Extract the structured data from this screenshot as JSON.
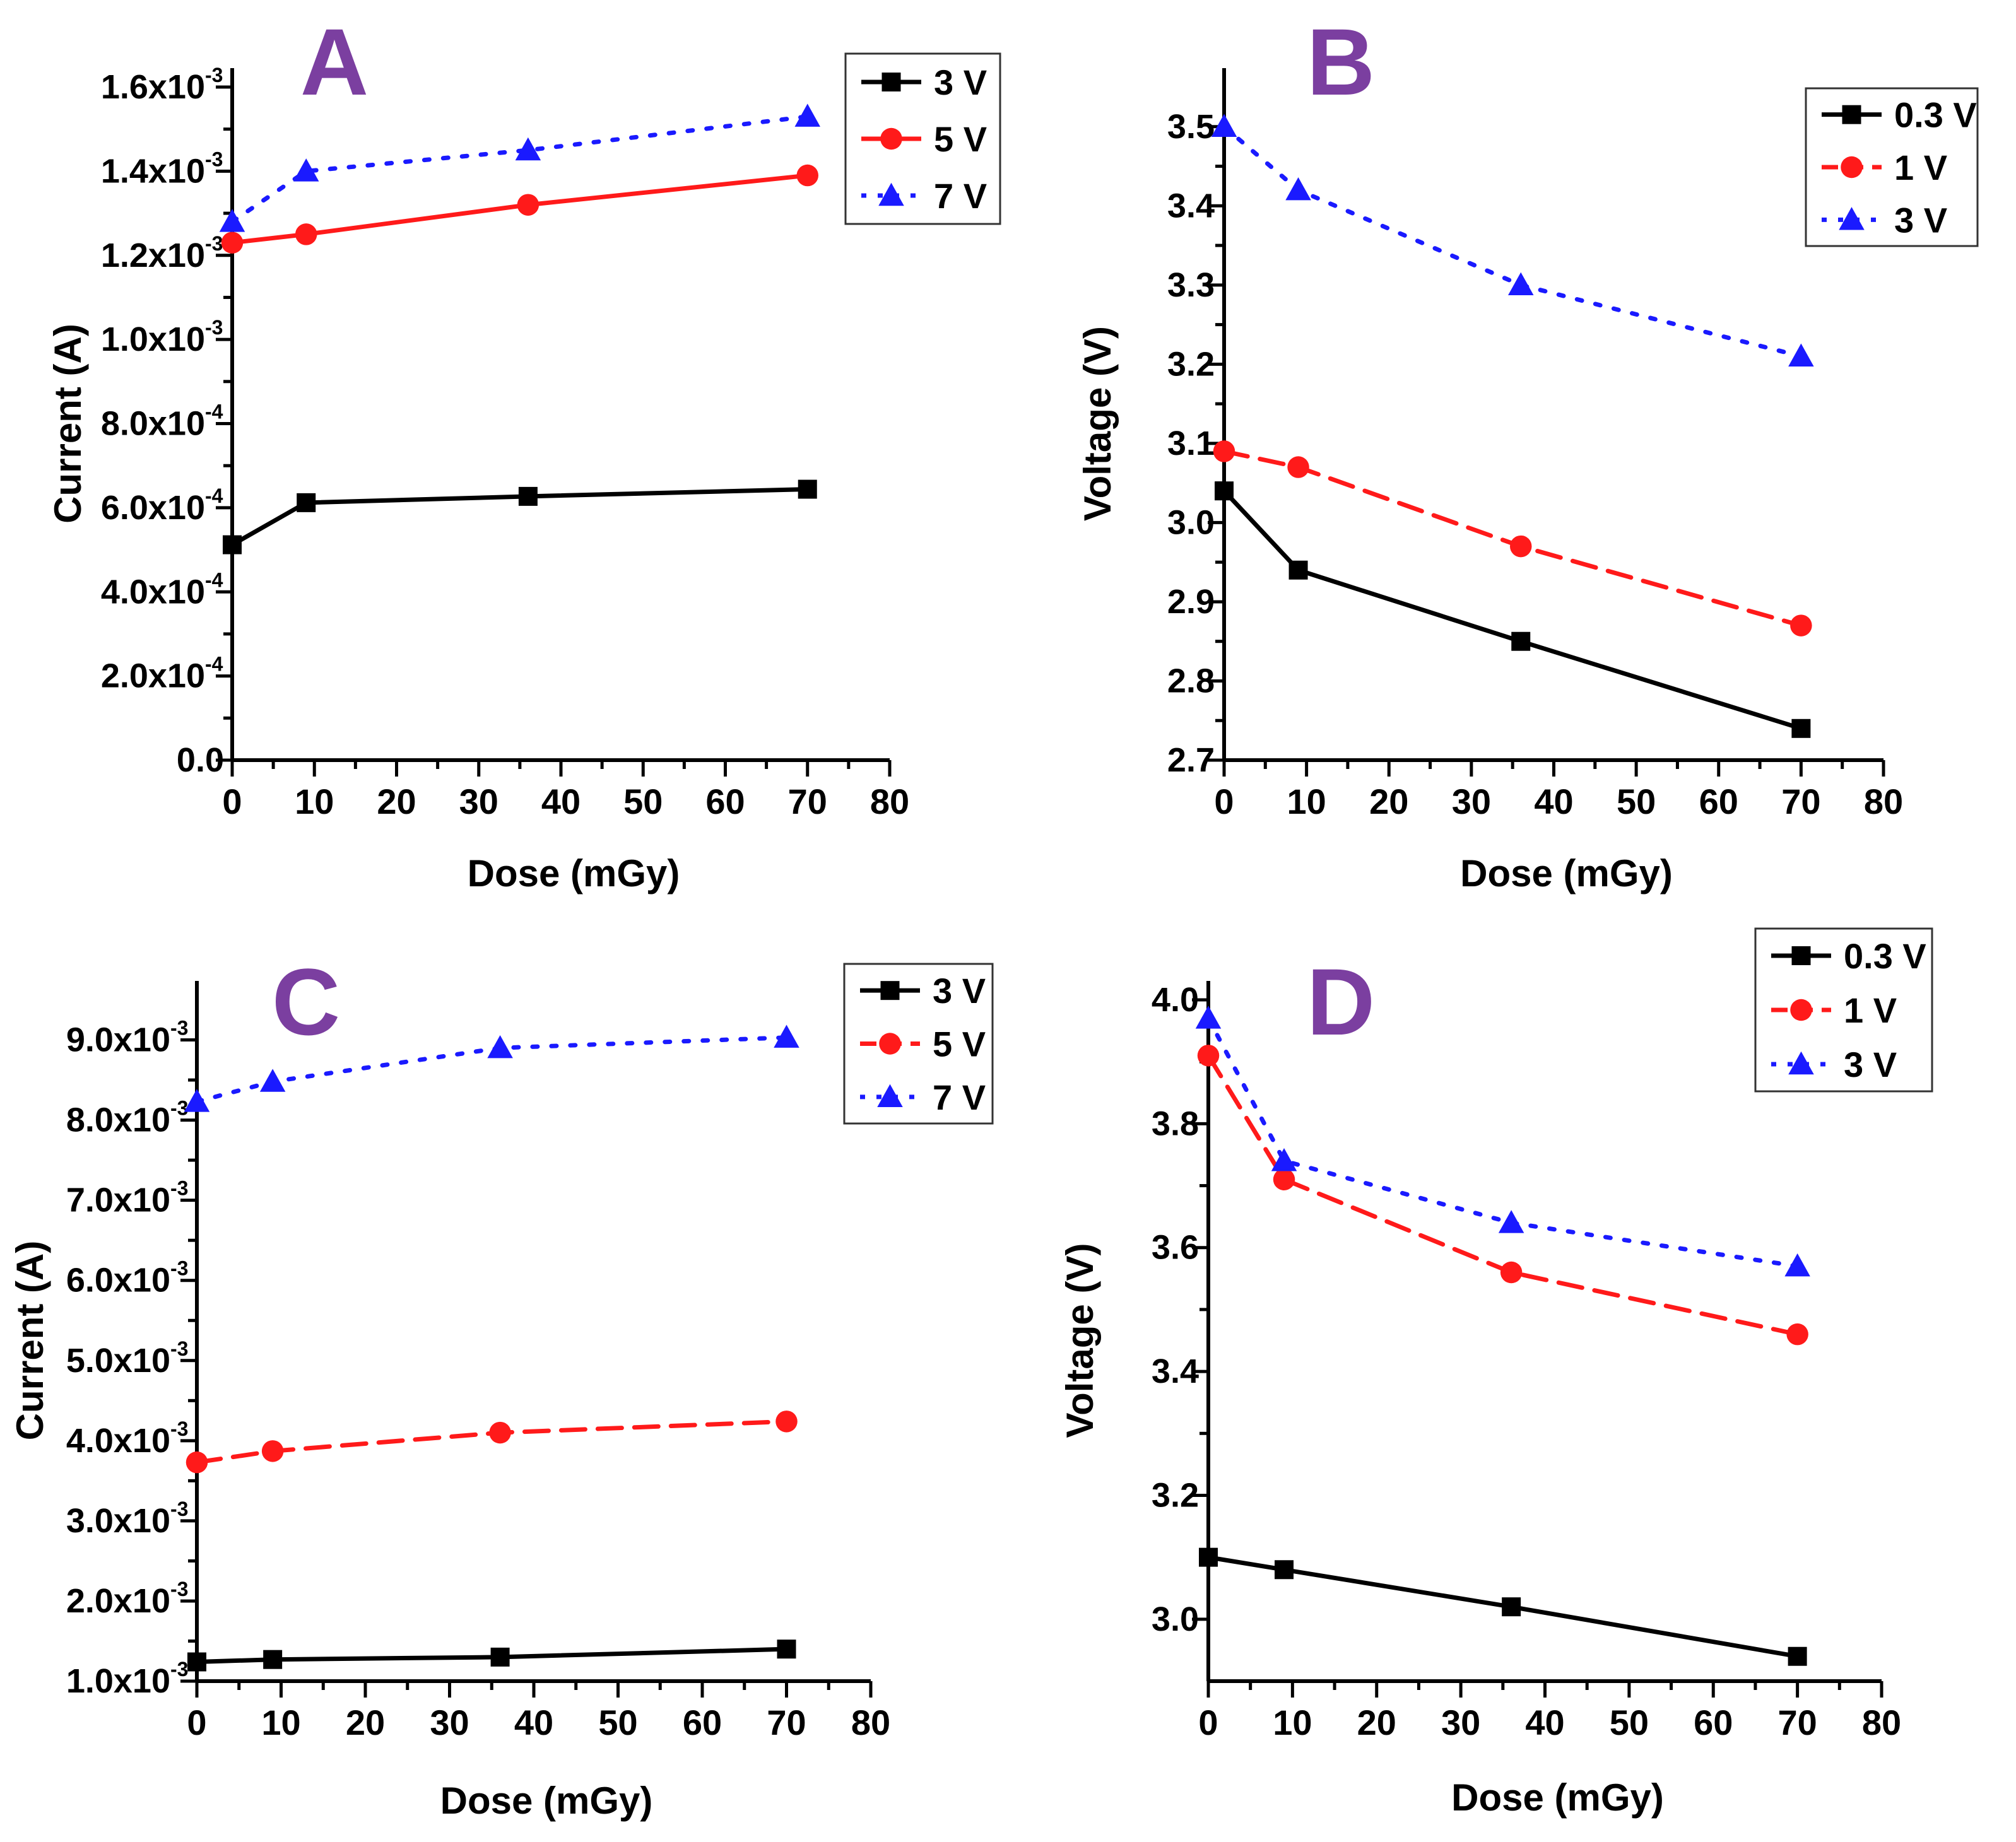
{
  "figure": {
    "colors": {
      "black": "#000000",
      "red": "#ff1a1a",
      "blue": "#1a1aff",
      "panel_letter": "#7b3fa0"
    }
  },
  "chart_data": [
    {
      "id": "A",
      "panel_label": "A",
      "type": "line",
      "xlabel": "Dose (mGy)",
      "ylabel": "Current (A)",
      "xlim": [
        0,
        80
      ],
      "ylim": [
        0,
        0.0016
      ],
      "x_ticks": [
        "0",
        "10",
        "20",
        "30",
        "40",
        "50",
        "60",
        "70",
        "80"
      ],
      "y_ticks": [
        {
          "value": 0,
          "mant": "0.0",
          "exp": ""
        },
        {
          "value": 0.0002,
          "mant": "2.0x10",
          "exp": "-4"
        },
        {
          "value": 0.0004,
          "mant": "4.0x10",
          "exp": "-4"
        },
        {
          "value": 0.0006,
          "mant": "6.0x10",
          "exp": "-4"
        },
        {
          "value": 0.0008,
          "mant": "8.0x10",
          "exp": "-4"
        },
        {
          "value": 0.001,
          "mant": "1.0x10",
          "exp": "-3"
        },
        {
          "value": 0.0012,
          "mant": "1.2x10",
          "exp": "-3"
        },
        {
          "value": 0.0014,
          "mant": "1.4x10",
          "exp": "-3"
        },
        {
          "value": 0.0016,
          "mant": "1.6x10",
          "exp": "-3"
        }
      ],
      "x": [
        0,
        9,
        36,
        70
      ],
      "series": [
        {
          "name": "3 V",
          "color": "#000000",
          "marker": "square",
          "dash": "solid",
          "values": [
            0.000512,
            0.000612,
            0.000627,
            0.000644
          ]
        },
        {
          "name": "5 V",
          "color": "#ff1a1a",
          "marker": "circle",
          "dash": "solid",
          "values": [
            0.00123,
            0.00125,
            0.00132,
            0.00139
          ]
        },
        {
          "name": "7 V",
          "color": "#1a1aff",
          "marker": "triangle",
          "dash": "dotted",
          "values": [
            0.00128,
            0.0014,
            0.00145,
            0.00153
          ]
        }
      ],
      "legend": "top-right"
    },
    {
      "id": "B",
      "panel_label": "B",
      "type": "line",
      "xlabel": "Dose (mGy)",
      "ylabel": "Voltage (V)",
      "xlim": [
        0,
        80
      ],
      "ylim": [
        2.7,
        3.55
      ],
      "x_ticks": [
        "0",
        "10",
        "20",
        "30",
        "40",
        "50",
        "60",
        "70",
        "80"
      ],
      "y_ticks": [
        {
          "value": 2.7,
          "mant": "2.7",
          "exp": ""
        },
        {
          "value": 2.8,
          "mant": "2.8",
          "exp": ""
        },
        {
          "value": 2.9,
          "mant": "2.9",
          "exp": ""
        },
        {
          "value": 3.0,
          "mant": "3.0",
          "exp": ""
        },
        {
          "value": 3.1,
          "mant": "3.1",
          "exp": ""
        },
        {
          "value": 3.2,
          "mant": "3.2",
          "exp": ""
        },
        {
          "value": 3.3,
          "mant": "3.3",
          "exp": ""
        },
        {
          "value": 3.4,
          "mant": "3.4",
          "exp": ""
        },
        {
          "value": 3.5,
          "mant": "3.5",
          "exp": ""
        }
      ],
      "x": [
        0,
        9,
        36,
        70
      ],
      "series": [
        {
          "name": "0.3 V",
          "color": "#000000",
          "marker": "square",
          "dash": "solid",
          "values": [
            3.04,
            2.94,
            2.85,
            2.74
          ]
        },
        {
          "name": "1 V",
          "color": "#ff1a1a",
          "marker": "circle",
          "dash": "dashed",
          "values": [
            3.09,
            3.07,
            2.97,
            2.87
          ]
        },
        {
          "name": "3 V",
          "color": "#1a1aff",
          "marker": "triangle",
          "dash": "dotted",
          "values": [
            3.5,
            3.42,
            3.3,
            3.21
          ]
        }
      ],
      "legend": "top-right"
    },
    {
      "id": "C",
      "panel_label": "C",
      "type": "line",
      "xlabel": "Dose (mGy)",
      "ylabel": "Current (A)",
      "xlim": [
        0,
        80
      ],
      "ylim": [
        0.001,
        0.0095
      ],
      "x_ticks": [
        "0",
        "10",
        "20",
        "30",
        "40",
        "50",
        "60",
        "70",
        "80"
      ],
      "y_ticks": [
        {
          "value": 0.001,
          "mant": "1.0x10",
          "exp": "-3"
        },
        {
          "value": 0.002,
          "mant": "2.0x10",
          "exp": "-3"
        },
        {
          "value": 0.003,
          "mant": "3.0x10",
          "exp": "-3"
        },
        {
          "value": 0.004,
          "mant": "4.0x10",
          "exp": "-3"
        },
        {
          "value": 0.005,
          "mant": "5.0x10",
          "exp": "-3"
        },
        {
          "value": 0.006,
          "mant": "6.0x10",
          "exp": "-3"
        },
        {
          "value": 0.007,
          "mant": "7.0x10",
          "exp": "-3"
        },
        {
          "value": 0.008,
          "mant": "8.0x10",
          "exp": "-3"
        },
        {
          "value": 0.009,
          "mant": "9.0x10",
          "exp": "-3"
        }
      ],
      "x": [
        0,
        9,
        36,
        70
      ],
      "series": [
        {
          "name": "3 V",
          "color": "#000000",
          "marker": "square",
          "dash": "solid",
          "values": [
            0.00124,
            0.00127,
            0.0013,
            0.0014
          ]
        },
        {
          "name": "5 V",
          "color": "#ff1a1a",
          "marker": "circle",
          "dash": "dashed",
          "values": [
            0.00373,
            0.00387,
            0.0041,
            0.00424
          ]
        },
        {
          "name": "7 V",
          "color": "#1a1aff",
          "marker": "triangle",
          "dash": "dotted",
          "values": [
            0.00823,
            0.00848,
            0.0089,
            0.00903
          ]
        }
      ],
      "legend": "top-right"
    },
    {
      "id": "D",
      "panel_label": "D",
      "type": "line",
      "xlabel": "Dose (mGy)",
      "ylabel": "Voltage (V)",
      "xlim": [
        0,
        80
      ],
      "ylim": [
        2.9,
        4.0
      ],
      "x_ticks": [
        "0",
        "10",
        "20",
        "30",
        "40",
        "50",
        "60",
        "70",
        "80"
      ],
      "y_ticks": [
        {
          "value": 3.0,
          "mant": "3.0",
          "exp": ""
        },
        {
          "value": 3.2,
          "mant": "3.2",
          "exp": ""
        },
        {
          "value": 3.4,
          "mant": "3.4",
          "exp": ""
        },
        {
          "value": 3.6,
          "mant": "3.6",
          "exp": ""
        },
        {
          "value": 3.8,
          "mant": "3.8",
          "exp": ""
        },
        {
          "value": 4.0,
          "mant": "4.0",
          "exp": ""
        }
      ],
      "x": [
        0,
        9,
        36,
        70
      ],
      "series": [
        {
          "name": "0.3 V",
          "color": "#000000",
          "marker": "square",
          "dash": "solid",
          "values": [
            3.1,
            3.08,
            3.02,
            2.94
          ]
        },
        {
          "name": "1 V",
          "color": "#ff1a1a",
          "marker": "circle",
          "dash": "dashed",
          "values": [
            3.91,
            3.71,
            3.56,
            3.46
          ]
        },
        {
          "name": "3 V",
          "color": "#1a1aff",
          "marker": "triangle",
          "dash": "dotted",
          "values": [
            3.97,
            3.74,
            3.64,
            3.57
          ]
        }
      ],
      "legend": "top-right"
    }
  ]
}
